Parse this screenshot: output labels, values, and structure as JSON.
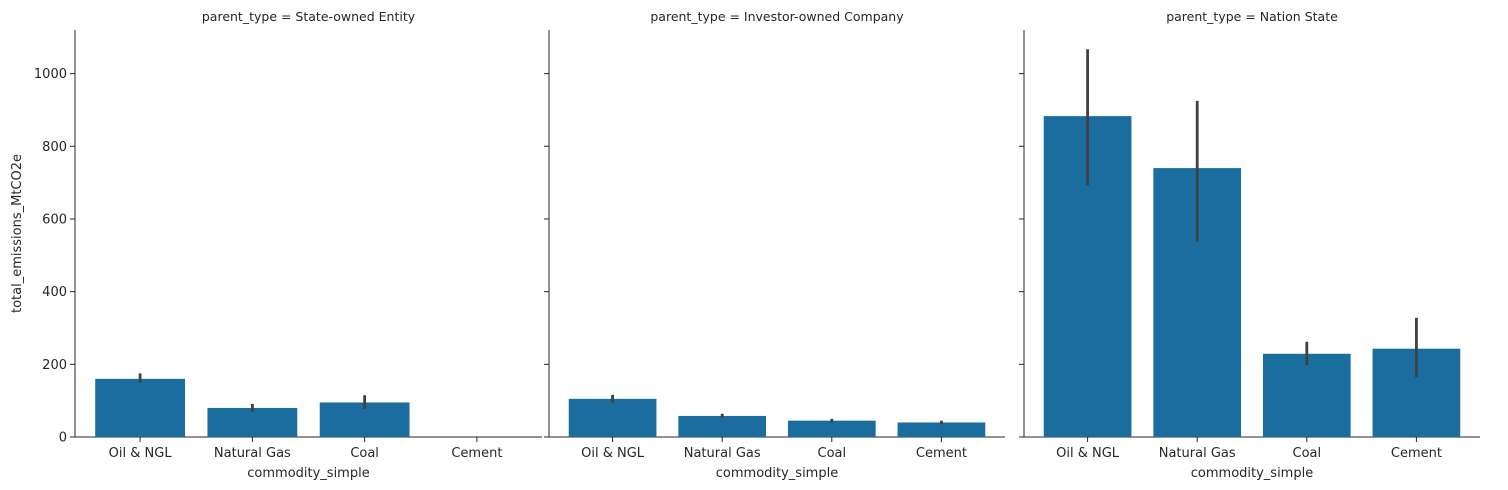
{
  "chart_data": [
    {
      "type": "bar",
      "title": "parent_type = State-owned Entity",
      "xlabel": "commodity_simple",
      "ylabel": "total_emissions_MtCO2e",
      "categories": [
        "Oil & NGL",
        "Natural Gas",
        "Coal",
        "Cement"
      ],
      "values": [
        160,
        80,
        95,
        null
      ],
      "error_low": [
        150,
        70,
        77,
        null
      ],
      "error_high": [
        175,
        91,
        115,
        null
      ],
      "ylim": [
        0,
        1120
      ],
      "yticks": [
        0,
        200,
        400,
        600,
        800,
        1000
      ],
      "bar_color": "#1a6d9e",
      "error_color": "#404040"
    },
    {
      "type": "bar",
      "title": "parent_type = Investor-owned Company",
      "xlabel": "commodity_simple",
      "ylabel": "",
      "categories": [
        "Oil & NGL",
        "Natural Gas",
        "Coal",
        "Cement"
      ],
      "values": [
        105,
        58,
        45,
        40
      ],
      "error_low": [
        95,
        53,
        40,
        35
      ],
      "error_high": [
        116,
        64,
        50,
        45
      ],
      "ylim": [
        0,
        1120
      ],
      "yticks": [
        0,
        200,
        400,
        600,
        800,
        1000
      ],
      "bar_color": "#1a6d9e",
      "error_color": "#404040"
    },
    {
      "type": "bar",
      "title": "parent_type = Nation State",
      "xlabel": "commodity_simple",
      "ylabel": "",
      "categories": [
        "Oil & NGL",
        "Natural Gas",
        "Coal",
        "Cement"
      ],
      "values": [
        883,
        740,
        229,
        243
      ],
      "error_low": [
        692,
        538,
        198,
        165
      ],
      "error_high": [
        1067,
        925,
        262,
        328
      ],
      "ylim": [
        0,
        1120
      ],
      "yticks": [
        0,
        200,
        400,
        600,
        800,
        1000
      ],
      "bar_color": "#1a6d9e",
      "error_color": "#404040"
    }
  ]
}
